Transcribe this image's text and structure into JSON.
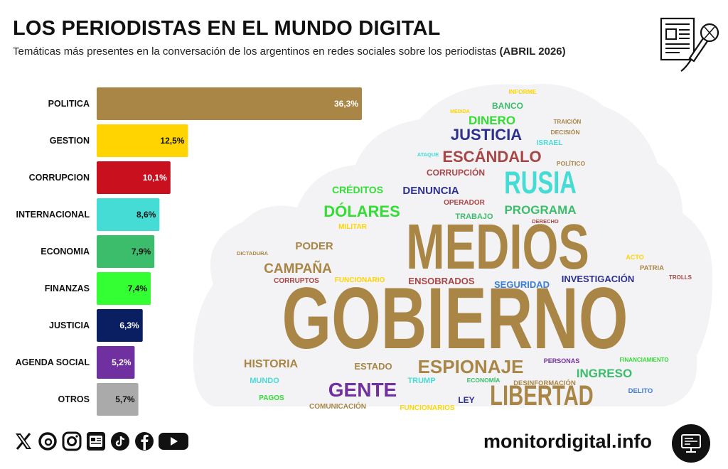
{
  "header": {
    "title": "LOS PERIODISTAS EN EL MUNDO DIGITAL",
    "subtitle": "Temáticas más presentes en la conversación de los argentinos en redes sociales sobre los periodistas",
    "period": "(ABRIL 2026)"
  },
  "chart_data": {
    "type": "bar",
    "orientation": "horizontal",
    "categories": [
      "POLITICA",
      "GESTION",
      "CORRUPCION",
      "INTERNACIONAL",
      "ECONOMIA",
      "FINANZAS",
      "JUSTICIA",
      "AGENDA SOCIAL",
      "OTROS"
    ],
    "values": [
      36.3,
      12.5,
      10.1,
      8.6,
      7.9,
      7.4,
      6.3,
      5.2,
      5.7
    ],
    "value_labels": [
      "36,3%",
      "12,5%",
      "10,1%",
      "8,6%",
      "7,9%",
      "7,4%",
      "6,3%",
      "5,2%",
      "5,7%"
    ],
    "colors": [
      "#a98646",
      "#ffd400",
      "#c8101e",
      "#45dcd6",
      "#3bbd6c",
      "#33ff33",
      "#0a1f62",
      "#7030a0",
      "#aaaaaa"
    ],
    "label_colors": [
      "#ffffff",
      "#111111",
      "#ffffff",
      "#111111",
      "#111111",
      "#111111",
      "#ffffff",
      "#ffffff",
      "#111111"
    ],
    "xlim": [
      0,
      36.3
    ],
    "grid": false,
    "legend": "none"
  },
  "word_cloud": [
    {
      "text": "GOBIERNO",
      "color": "#a98646"
    },
    {
      "text": "MEDIOS",
      "color": "#a98646"
    },
    {
      "text": "LIBERTAD",
      "color": "#a98646"
    },
    {
      "text": "RUSIA",
      "color": "#45dcd6"
    },
    {
      "text": "ESPIONAJE",
      "color": "#a98646"
    },
    {
      "text": "GENTE",
      "color": "#7030a0"
    },
    {
      "text": "ESCÁNDALO",
      "color": "#a84545"
    },
    {
      "text": "DÓLARES",
      "color": "#33dd33"
    },
    {
      "text": "JUSTICIA",
      "color": "#2e3192"
    },
    {
      "text": "CAMPAÑA",
      "color": "#a98646"
    },
    {
      "text": "PROGRAMA",
      "color": "#3bbd6c"
    },
    {
      "text": "DINERO",
      "color": "#33dd33"
    },
    {
      "text": "INGRESO",
      "color": "#3bbd6c"
    },
    {
      "text": "DENUNCIA",
      "color": "#2e3192"
    },
    {
      "text": "HISTORIA",
      "color": "#a98646"
    },
    {
      "text": "PODER",
      "color": "#a98646"
    },
    {
      "text": "CRÉDITOS",
      "color": "#33dd33"
    },
    {
      "text": "INVESTIGACIÓN",
      "color": "#2e3192"
    },
    {
      "text": "ENSOBRADOS",
      "color": "#a84545"
    },
    {
      "text": "SEGURIDAD",
      "color": "#3b7dd8"
    },
    {
      "text": "ESTADO",
      "color": "#a98646"
    },
    {
      "text": "CORRUPCIÓN",
      "color": "#a84545"
    },
    {
      "text": "BANCO",
      "color": "#3bbd6c"
    },
    {
      "text": "TRABAJO",
      "color": "#3bbd6c"
    },
    {
      "text": "OPERADOR",
      "color": "#a84545"
    },
    {
      "text": "LEY",
      "color": "#2e3192"
    },
    {
      "text": "MUNDO",
      "color": "#45dcd6"
    },
    {
      "text": "TRUMP",
      "color": "#45dcd6"
    },
    {
      "text": "CORRUPTOS",
      "color": "#a84545"
    },
    {
      "text": "FUNCIONARIO",
      "color": "#ffd400"
    },
    {
      "text": "MILITAR",
      "color": "#ffd400"
    },
    {
      "text": "ISRAEL",
      "color": "#45dcd6"
    },
    {
      "text": "PAGOS",
      "color": "#33dd33"
    },
    {
      "text": "FUNCIONARIOS",
      "color": "#ffd400"
    },
    {
      "text": "COMUNICACIÓN",
      "color": "#a98646"
    },
    {
      "text": "DESINFORMACIÓN",
      "color": "#a98646"
    },
    {
      "text": "ECONOMÍA",
      "color": "#3bbd6c"
    },
    {
      "text": "PERSONAS",
      "color": "#7030a0"
    },
    {
      "text": "DELITO",
      "color": "#3b7dd8"
    },
    {
      "text": "FINANCIAMIENTO",
      "color": "#33dd33"
    },
    {
      "text": "PATRIA",
      "color": "#a98646"
    },
    {
      "text": "ACTO",
      "color": "#ffd400"
    },
    {
      "text": "TROLLS",
      "color": "#a84545"
    },
    {
      "text": "DICTADURA",
      "color": "#a98646"
    },
    {
      "text": "DERECHO",
      "color": "#a84545"
    },
    {
      "text": "POLÍTICO",
      "color": "#a98646"
    },
    {
      "text": "DECISIÓN",
      "color": "#a98646"
    },
    {
      "text": "TRAICIÓN",
      "color": "#a98646"
    },
    {
      "text": "INFORME",
      "color": "#ffd400"
    },
    {
      "text": "MEDIDA",
      "color": "#ffd400"
    },
    {
      "text": "ATAQUE",
      "color": "#45dcd6"
    }
  ],
  "footer": {
    "site": "monitordigital.info",
    "social": [
      "x-icon",
      "threads-icon",
      "instagram-icon",
      "news-icon",
      "tiktok-icon",
      "facebook-icon",
      "youtube-icon"
    ]
  }
}
